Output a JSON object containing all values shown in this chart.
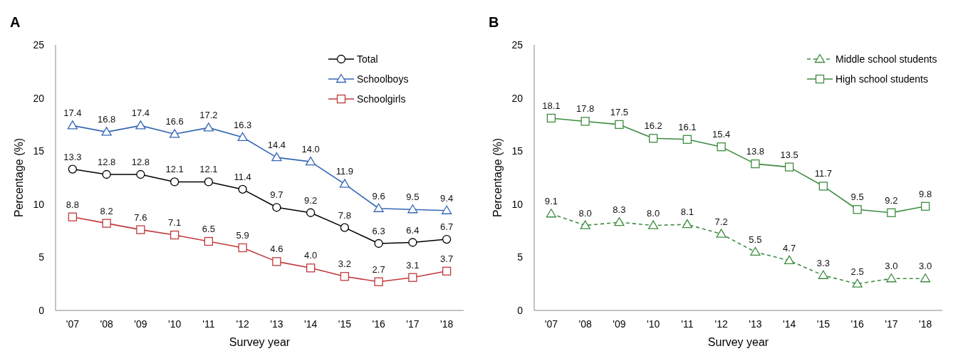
{
  "chart_data": [
    {
      "type": "line",
      "title": "A",
      "xlabel": "Survey year",
      "ylabel": "Percentage (%)",
      "categories": [
        "'07",
        "'08",
        "'09",
        "'10",
        "'11",
        "'12",
        "'13",
        "'14",
        "'15",
        "'16",
        "'17",
        "'18"
      ],
      "ylim": [
        0,
        25
      ],
      "yticks": [
        0,
        5,
        10,
        15,
        20,
        25
      ],
      "grid": false,
      "legend": "top right",
      "series": [
        {
          "name": "Total",
          "color": "#000000",
          "marker": "circle",
          "line_style": "solid",
          "values": [
            13.3,
            12.8,
            12.8,
            12.1,
            12.1,
            11.4,
            9.7,
            9.2,
            7.8,
            6.3,
            6.4,
            6.7
          ],
          "value_labels": [
            "13.3",
            "12.8",
            "12.8",
            "12.1",
            "12.1",
            "11.4",
            "9.7",
            "9.2",
            "7.8",
            "6.3",
            "6.4",
            "6.7"
          ]
        },
        {
          "name": "Schoolboys",
          "color": "#3567b5",
          "marker": "triangle",
          "line_style": "solid",
          "values": [
            17.4,
            16.8,
            17.4,
            16.6,
            17.2,
            16.3,
            14.4,
            14.0,
            11.9,
            9.6,
            9.5,
            9.4
          ],
          "value_labels": [
            "17.4",
            "16.8",
            "17.4",
            "16.6",
            "17.2",
            "16.3",
            "14.4",
            "14.0",
            "11.9",
            "9.6",
            "9.5",
            "9.4"
          ]
        },
        {
          "name": "Schoolgirls",
          "color": "#c0393b",
          "marker": "square",
          "line_style": "solid",
          "values": [
            8.8,
            8.2,
            7.6,
            7.1,
            6.5,
            5.9,
            4.6,
            4.0,
            3.2,
            2.7,
            3.1,
            3.7
          ],
          "value_labels": [
            "8.8",
            "8.2",
            "7.6",
            "7.1",
            "6.5",
            "5.9",
            "4.6",
            "4.0",
            "3.2",
            "2.7",
            "3.1",
            "3.7"
          ]
        }
      ]
    },
    {
      "type": "line",
      "title": "B",
      "xlabel": "Survey year",
      "ylabel": "Percentage (%)",
      "categories": [
        "'07",
        "'08",
        "'09",
        "'10",
        "'11",
        "'12",
        "'13",
        "'14",
        "'15",
        "'16",
        "'17",
        "'18"
      ],
      "ylim": [
        0,
        25
      ],
      "yticks": [
        0,
        5,
        10,
        15,
        20,
        25
      ],
      "grid": false,
      "legend": "top right",
      "series": [
        {
          "name": "Middle school students",
          "color": "#3d8c40",
          "marker": "triangle",
          "line_style": "dashed",
          "values": [
            9.1,
            8.0,
            8.3,
            8.0,
            8.1,
            7.2,
            5.5,
            4.7,
            3.3,
            2.5,
            3.0,
            3.0
          ],
          "value_labels": [
            "9.1",
            "8.0",
            "8.3",
            "8.0",
            "8.1",
            "7.2",
            "5.5",
            "4.7",
            "3.3",
            "2.5",
            "3.0",
            "3.0"
          ]
        },
        {
          "name": "High school students",
          "color": "#3d8c40",
          "marker": "square",
          "line_style": "solid",
          "values": [
            18.1,
            17.8,
            17.5,
            16.2,
            16.1,
            15.4,
            13.8,
            13.5,
            11.7,
            9.5,
            9.2,
            9.8
          ],
          "value_labels": [
            "18.1",
            "17.8",
            "17.5",
            "16.2",
            "16.1",
            "15.4",
            "13.8",
            "13.5",
            "11.7",
            "9.5",
            "9.2",
            "9.8"
          ]
        }
      ]
    }
  ]
}
